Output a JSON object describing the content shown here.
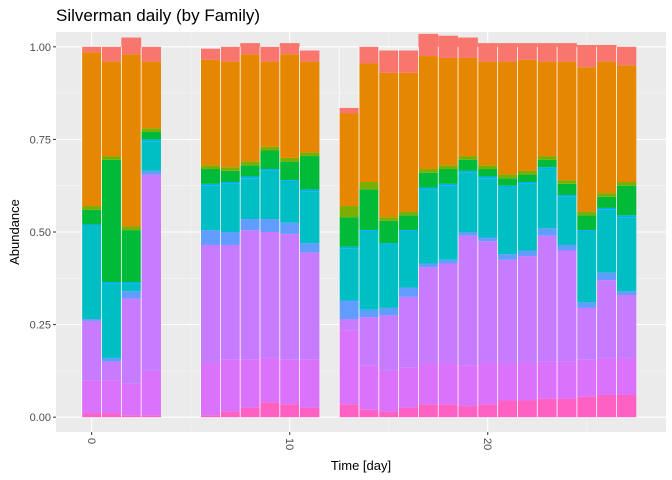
{
  "chart_data": {
    "type": "bar",
    "stacked": true,
    "title": "Silverman daily (by Family)",
    "xlabel": "Time [day]",
    "ylabel": "Abundance",
    "xlim": [
      -1.8,
      29
    ],
    "ylim": [
      -0.04,
      1.04
    ],
    "x_ticks": [
      0,
      10,
      20
    ],
    "x_tick_labels": [
      "0",
      "10",
      "20"
    ],
    "y_ticks": [
      0,
      0.25,
      0.5,
      0.75,
      1.0
    ],
    "y_tick_labels": [
      "0.00",
      "0.25",
      "0.50",
      "0.75",
      "1.00"
    ],
    "legend": "none",
    "grid": true,
    "x": [
      0,
      1,
      2,
      3,
      6,
      7,
      8,
      9,
      10,
      11,
      13,
      14,
      15,
      16,
      17,
      18,
      19,
      20,
      21,
      22,
      23,
      24,
      25,
      26,
      27
    ],
    "series": [
      {
        "color": "#FF61C3",
        "values": [
          0.01,
          0.01,
          0.005,
          0.005,
          0.005,
          0.015,
          0.025,
          0.04,
          0.035,
          0.025,
          0.035,
          0.02,
          0.015,
          0.025,
          0.035,
          0.035,
          0.03,
          0.035,
          0.045,
          0.045,
          0.05,
          0.05,
          0.055,
          0.06,
          0.06
        ]
      },
      {
        "color": "#DB72FB",
        "values": [
          0.09,
          0.09,
          0.085,
          0.12,
          0.14,
          0.14,
          0.13,
          0.12,
          0.12,
          0.13,
          0.2,
          0.12,
          0.11,
          0.11,
          0.11,
          0.11,
          0.11,
          0.11,
          0.1,
          0.1,
          0.1,
          0.1,
          0.1,
          0.1,
          0.1
        ]
      },
      {
        "color": "#C77CFF",
        "values": [
          0.16,
          0.05,
          0.23,
          0.53,
          0.32,
          0.31,
          0.35,
          0.34,
          0.34,
          0.29,
          0.03,
          0.13,
          0.15,
          0.19,
          0.26,
          0.27,
          0.35,
          0.33,
          0.28,
          0.29,
          0.34,
          0.3,
          0.14,
          0.21,
          0.17
        ]
      },
      {
        "color": "#619CFF",
        "values": [
          0.005,
          0.01,
          0.02,
          0.01,
          0.04,
          0.035,
          0.03,
          0.035,
          0.03,
          0.025,
          0.05,
          0.02,
          0.02,
          0.025,
          0.01,
          0.01,
          0.01,
          0.01,
          0.015,
          0.015,
          0.02,
          0.015,
          0.015,
          0.02,
          0.01
        ]
      },
      {
        "color": "#00BFC4",
        "values": [
          0.25,
          0.2,
          0.02,
          0.08,
          0.12,
          0.13,
          0.11,
          0.13,
          0.11,
          0.14,
          0.14,
          0.21,
          0.17,
          0.15,
          0.2,
          0.2,
          0.16,
          0.16,
          0.18,
          0.18,
          0.16,
          0.13,
          0.19,
          0.17,
          0.2
        ]
      },
      {
        "color": "#00B0F6",
        "values": [
          0.005,
          0.005,
          0.005,
          0.005,
          0.005,
          0.005,
          0.005,
          0.005,
          0.005,
          0.005,
          0.005,
          0.005,
          0.005,
          0.005,
          0.005,
          0.005,
          0.005,
          0.005,
          0.005,
          0.005,
          0.005,
          0.005,
          0.005,
          0.005,
          0.005
        ]
      },
      {
        "color": "#00BA38",
        "values": [
          0.04,
          0.33,
          0.14,
          0.02,
          0.04,
          0.03,
          0.03,
          0.05,
          0.05,
          0.09,
          0.08,
          0.11,
          0.06,
          0.04,
          0.04,
          0.04,
          0.03,
          0.02,
          0.02,
          0.02,
          0.02,
          0.03,
          0.04,
          0.03,
          0.08
        ]
      },
      {
        "color": "#7CAE00",
        "values": [
          0.01,
          0.01,
          0.01,
          0.01,
          0.01,
          0.01,
          0.01,
          0.01,
          0.01,
          0.01,
          0.03,
          0.02,
          0.01,
          0.01,
          0.01,
          0.01,
          0.01,
          0.01,
          0.01,
          0.01,
          0.01,
          0.01,
          0.01,
          0.01,
          0.01
        ]
      },
      {
        "color": "#E58700",
        "values": [
          0.415,
          0.255,
          0.465,
          0.18,
          0.285,
          0.285,
          0.29,
          0.23,
          0.28,
          0.245,
          0.25,
          0.32,
          0.39,
          0.375,
          0.305,
          0.29,
          0.265,
          0.28,
          0.305,
          0.3,
          0.255,
          0.32,
          0.39,
          0.355,
          0.315
        ]
      },
      {
        "color": "#F8766D",
        "values": [
          0.015,
          0.04,
          0.045,
          0.04,
          0.03,
          0.04,
          0.03,
          0.04,
          0.03,
          0.03,
          0.015,
          0.045,
          0.06,
          0.06,
          0.06,
          0.06,
          0.055,
          0.05,
          0.05,
          0.045,
          0.05,
          0.05,
          0.06,
          0.045,
          0.05
        ]
      }
    ]
  }
}
